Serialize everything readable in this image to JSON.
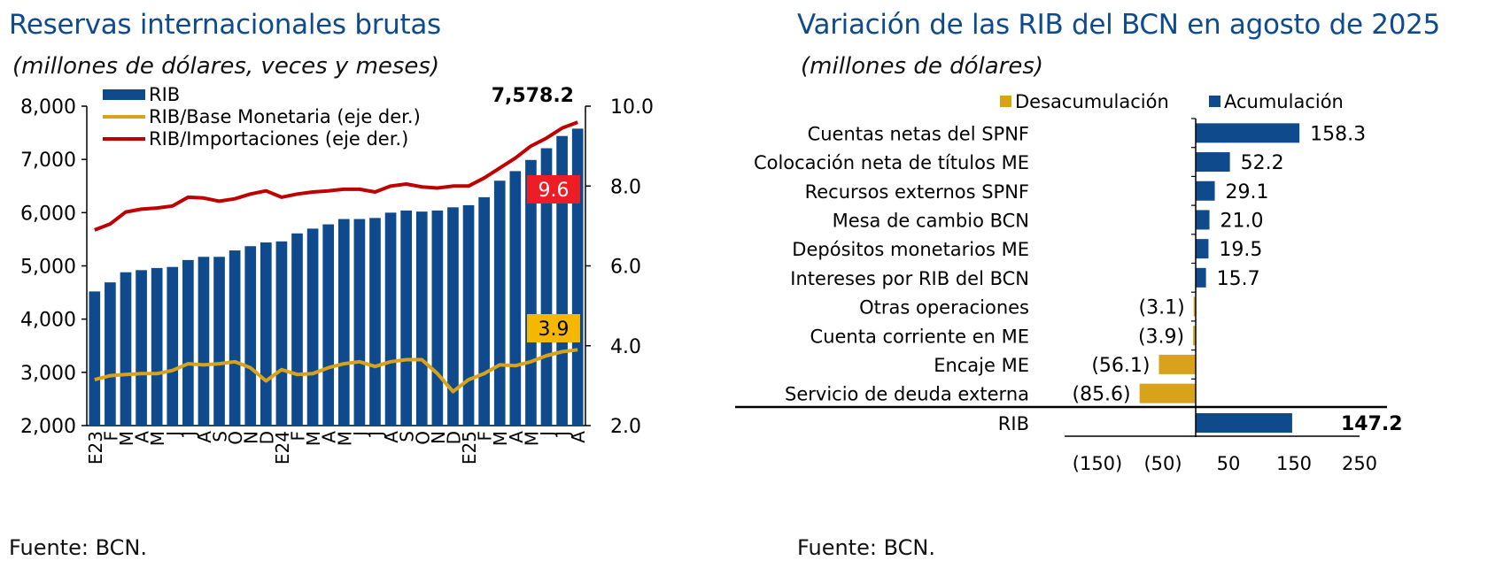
{
  "left": {
    "title": "Reservas internacionales brutas",
    "subtitle": "(millones de dólares, veces y meses)",
    "source": "Fuente: BCN.",
    "chart_data": {
      "type": "bar",
      "categories": [
        "E23",
        "F",
        "M",
        "A",
        "M",
        "J",
        "J",
        "A",
        "S",
        "O",
        "N",
        "D",
        "E24",
        "F",
        "M",
        "A",
        "M",
        "J",
        "J",
        "A",
        "S",
        "O",
        "N",
        "D",
        "E25",
        "F",
        "M",
        "A",
        "M",
        "J",
        "J",
        "A"
      ],
      "series": [
        {
          "name": "RIB",
          "type": "bar",
          "axis": "left",
          "values": [
            4520,
            4690,
            4880,
            4920,
            4960,
            4980,
            5110,
            5170,
            5170,
            5290,
            5370,
            5440,
            5460,
            5610,
            5700,
            5780,
            5880,
            5880,
            5900,
            6000,
            6040,
            6020,
            6040,
            6100,
            6140,
            6290,
            6600,
            6780,
            6990,
            7210,
            7440,
            7578.2
          ]
        },
        {
          "name": "RIB/Base Monetaria (eje der.)",
          "type": "line",
          "axis": "right",
          "color": "#d8a31a",
          "values": [
            3.15,
            3.25,
            3.28,
            3.3,
            3.3,
            3.38,
            3.55,
            3.52,
            3.55,
            3.6,
            3.45,
            3.12,
            3.4,
            3.28,
            3.3,
            3.45,
            3.55,
            3.6,
            3.48,
            3.6,
            3.65,
            3.65,
            3.3,
            2.85,
            3.15,
            3.3,
            3.52,
            3.5,
            3.6,
            3.75,
            3.85,
            3.9
          ]
        },
        {
          "name": "RIB/Importaciones (eje der.)",
          "type": "line",
          "axis": "right",
          "color": "#c00000",
          "values": [
            6.9,
            7.05,
            7.35,
            7.42,
            7.45,
            7.5,
            7.72,
            7.7,
            7.62,
            7.68,
            7.8,
            7.88,
            7.72,
            7.8,
            7.85,
            7.88,
            7.92,
            7.92,
            7.85,
            8.0,
            8.05,
            7.98,
            7.95,
            8.0,
            8.0,
            8.2,
            8.45,
            8.7,
            9.0,
            9.2,
            9.45,
            9.6
          ]
        }
      ],
      "ylim_left": [
        2000,
        8000
      ],
      "yticks_left": [
        "2,000",
        "3,000",
        "4,000",
        "5,000",
        "6,000",
        "7,000",
        "8,000"
      ],
      "ylim_right": [
        2.0,
        10.0
      ],
      "yticks_right": [
        "2.0",
        "4.0",
        "6.0",
        "8.0",
        "10.0"
      ],
      "annotations": {
        "last_bar": "7,578.2",
        "rib_importaciones": "9.6",
        "rib_base": "3.9"
      },
      "colors": {
        "bar": "#0f4b8c",
        "red_label": "#ee1c25",
        "gold_label": "#f5b700"
      }
    }
  },
  "right": {
    "title": "Variación de las RIB del BCN en agosto de 2025",
    "subtitle": "(millones de dólares)",
    "source": "Fuente: BCN.",
    "chart_data": {
      "type": "bar",
      "orientation": "horizontal",
      "legend": [
        "Desacumulación",
        "Acumulación"
      ],
      "colors": {
        "Desacumulación": "#d8a31a",
        "Acumulación": "#0f4b8c"
      },
      "categories": [
        "Cuentas netas del SPNF",
        "Colocación neta de títulos ME",
        "Recursos externos SPNF",
        "Mesa de cambio BCN",
        "Depósitos monetarios ME",
        "Intereses por RIB del BCN",
        "Otras operaciones",
        "Cuenta corriente en ME",
        "Encaje ME",
        "Servicio de deuda externa"
      ],
      "values": [
        158.3,
        52.2,
        29.1,
        21.0,
        19.5,
        15.7,
        -3.1,
        -3.9,
        -56.1,
        -85.6
      ],
      "labels": [
        "158.3",
        "52.2",
        "29.1",
        "21.0",
        "19.5",
        "15.7",
        "(3.1)",
        "(3.9)",
        "(56.1)",
        "(85.6)"
      ],
      "total": {
        "category": "RIB",
        "value": 147.2,
        "label": "147.2"
      },
      "xlim": [
        -200,
        250
      ],
      "xticks": [
        -150,
        -50,
        50,
        150,
        250
      ],
      "xtick_labels": [
        "(150)",
        "(50)",
        "50",
        "150",
        "250"
      ]
    }
  }
}
